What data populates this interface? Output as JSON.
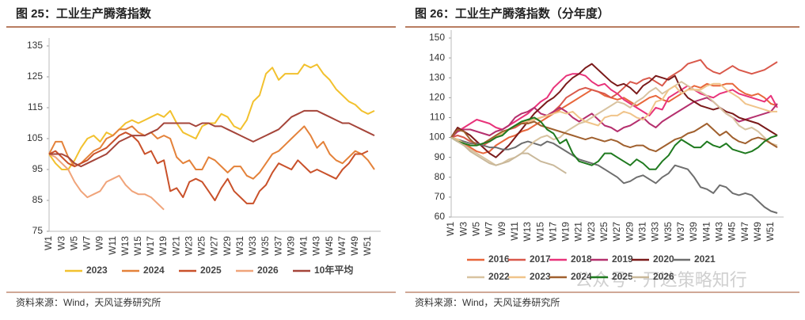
{
  "chart_data": [
    {
      "type": "line",
      "title": "图 25：工业生产腾落指数",
      "source": "资料来源：Wind，天风证券研究所",
      "categories": [
        "W1",
        null,
        "W3",
        null,
        "W5",
        null,
        "W7",
        null,
        "W9",
        null,
        "W11",
        null,
        "W13",
        null,
        "W15",
        null,
        "W17",
        null,
        "W19",
        null,
        "W21",
        null,
        "W23",
        null,
        "W25",
        null,
        "W27",
        null,
        "W29",
        null,
        "W31",
        null,
        "W33",
        null,
        "W35",
        null,
        "W37",
        null,
        "W39",
        null,
        "W41",
        null,
        "W43",
        null,
        "W45",
        null,
        "W47",
        null,
        "W49",
        null,
        "W51",
        null
      ],
      "ylim": [
        75,
        135
      ],
      "yticks": [
        75,
        85,
        95,
        105,
        115,
        125,
        135
      ],
      "series": [
        {
          "name": "2023",
          "color": "#f2c12e",
          "values": [
            100,
            97,
            95,
            95,
            98,
            102,
            105,
            106,
            104,
            107,
            106,
            108,
            110,
            111,
            110,
            111,
            112,
            113,
            112,
            114,
            110,
            107,
            106,
            105,
            109,
            110,
            110,
            113,
            112,
            109,
            108,
            111,
            117,
            119,
            126,
            128,
            124,
            126,
            126,
            126,
            129,
            128,
            129,
            126,
            124,
            121,
            119,
            117,
            116,
            114,
            113,
            114
          ]
        },
        {
          "name": "2024",
          "color": "#e4823a",
          "values": [
            100,
            104,
            104,
            99,
            96,
            97,
            99,
            101,
            102,
            105,
            106,
            108,
            108,
            109,
            107,
            106,
            107,
            105,
            106,
            105,
            99,
            97,
            98,
            95,
            95,
            99,
            98,
            96,
            94,
            96,
            96,
            93,
            92,
            94,
            97,
            100,
            101,
            103,
            105,
            107,
            109,
            106,
            102,
            104,
            100,
            98,
            97,
            99,
            101,
            100,
            98,
            95
          ]
        },
        {
          "name": "2025",
          "color": "#c9512a",
          "values": [
            100,
            101,
            99,
            97,
            96,
            97,
            98,
            100,
            101,
            102,
            104,
            106,
            107,
            106,
            104,
            100,
            101,
            97,
            98,
            88,
            89,
            86,
            91,
            92,
            91,
            88,
            85,
            89,
            92,
            88,
            86,
            84,
            84,
            88,
            90,
            94,
            97,
            96,
            95,
            98,
            96,
            94,
            95,
            94,
            93,
            92,
            95,
            97,
            100,
            100,
            101,
            null
          ]
        },
        {
          "name": "2026",
          "color": "#f0a47a",
          "values": [
            100,
            99,
            97,
            95,
            91,
            88,
            86,
            87,
            88,
            91,
            92,
            93,
            90,
            88,
            87,
            87,
            86,
            84,
            82,
            null,
            null,
            null,
            null,
            null,
            null,
            null,
            null,
            null,
            null,
            null,
            null,
            null,
            null,
            null,
            null,
            null,
            null,
            null,
            null,
            null,
            null,
            null,
            null,
            null,
            null,
            null,
            null,
            null,
            null,
            null,
            null,
            null
          ]
        },
        {
          "name": "10年平均",
          "color": "#a5453a",
          "values": [
            100,
            100,
            100,
            99,
            97,
            96,
            97,
            98,
            99,
            100,
            102,
            104,
            105,
            106,
            106,
            106,
            107,
            108,
            110,
            110,
            110,
            110,
            110,
            109,
            110,
            110,
            109,
            109,
            108,
            107,
            106,
            105,
            104,
            105,
            106,
            107,
            108,
            110,
            112,
            113,
            114,
            114,
            114,
            113,
            112,
            111,
            110,
            110,
            109,
            108,
            107,
            106
          ]
        }
      ]
    },
    {
      "type": "line",
      "title": "图 26：工业生产腾落指数（分年度）",
      "source": "资料来源：Wind，天风证券研究所",
      "categories": [
        "W1",
        null,
        "W3",
        null,
        "W5",
        null,
        "W7",
        null,
        "W9",
        null,
        "W11",
        null,
        "W13",
        null,
        "W15",
        null,
        "W17",
        null,
        "W19",
        null,
        "W21",
        null,
        "W23",
        null,
        "W25",
        null,
        "W27",
        null,
        "W29",
        null,
        "W31",
        null,
        "W33",
        null,
        "W35",
        null,
        "W37",
        null,
        "W39",
        null,
        "W41",
        null,
        "W43",
        null,
        "W45",
        null,
        "W47",
        null,
        "W49",
        null,
        "W51",
        null
      ],
      "ylim": [
        60,
        150
      ],
      "yticks": [
        60,
        70,
        80,
        90,
        100,
        110,
        120,
        130,
        140,
        150
      ],
      "series": [
        {
          "name": "2016",
          "color": "#e8663a",
          "values": [
            100,
            99,
            97,
            95,
            93,
            92,
            93,
            96,
            98,
            100,
            101,
            103,
            104,
            106,
            108,
            110,
            112,
            114,
            116,
            118,
            120,
            122,
            124,
            123,
            121,
            120,
            119,
            120,
            118,
            116,
            118,
            120,
            121,
            119,
            118,
            120,
            122,
            124,
            126,
            125,
            127,
            126,
            126,
            127,
            127,
            124,
            122,
            121,
            122,
            120,
            117,
            116
          ]
        },
        {
          "name": "2017",
          "color": "#d9584a",
          "values": [
            100,
            101,
            100,
            98,
            97,
            96,
            98,
            100,
            102,
            104,
            105,
            107,
            108,
            109,
            110,
            111,
            113,
            116,
            120,
            122,
            124,
            125,
            124,
            123,
            122,
            120,
            122,
            125,
            128,
            127,
            129,
            130,
            128,
            126,
            130,
            132,
            134,
            137,
            138,
            139,
            135,
            133,
            132,
            134,
            136,
            134,
            133,
            132,
            133,
            134,
            136,
            138
          ]
        },
        {
          "name": "2018",
          "color": "#e8337a",
          "values": [
            100,
            103,
            105,
            107,
            109,
            108,
            107,
            105,
            104,
            106,
            108,
            110,
            112,
            115,
            118,
            120,
            125,
            128,
            131,
            132,
            132,
            131,
            128,
            126,
            127,
            124,
            122,
            119,
            117,
            115,
            113,
            111,
            115,
            114,
            120,
            122,
            124,
            126,
            124,
            122,
            121,
            120,
            122,
            123,
            124,
            122,
            121,
            120,
            119,
            118,
            121,
            115
          ]
        },
        {
          "name": "2019",
          "color": "#b5306e",
          "values": [
            100,
            103,
            104,
            104,
            103,
            102,
            101,
            103,
            104,
            106,
            110,
            112,
            113,
            115,
            112,
            111,
            113,
            115,
            113,
            110,
            108,
            110,
            112,
            109,
            106,
            105,
            103,
            105,
            106,
            108,
            110,
            107,
            105,
            108,
            110,
            112,
            114,
            116,
            118,
            119,
            120,
            118,
            115,
            112,
            110,
            108,
            109,
            110,
            111,
            112,
            113,
            117
          ]
        },
        {
          "name": "2020",
          "color": "#7a1a1a",
          "values": [
            100,
            105,
            103,
            101,
            98,
            95,
            92,
            90,
            93,
            96,
            100,
            104,
            108,
            112,
            115,
            118,
            120,
            123,
            127,
            130,
            132,
            135,
            137,
            134,
            131,
            128,
            126,
            127,
            125,
            122,
            126,
            128,
            131,
            130,
            129,
            131,
            124,
            120,
            118,
            116,
            115,
            114,
            115,
            113,
            112,
            110,
            109,
            108,
            107,
            105,
            103,
            101
          ]
        },
        {
          "name": "2021",
          "color": "#6e6e6e",
          "values": [
            100,
            99,
            98,
            97,
            97,
            96,
            95,
            95,
            94,
            94,
            95,
            97,
            98,
            97,
            96,
            98,
            97,
            95,
            93,
            91,
            89,
            88,
            87,
            86,
            84,
            82,
            80,
            77,
            78,
            80,
            81,
            79,
            77,
            80,
            82,
            86,
            85,
            84,
            80,
            75,
            74,
            72,
            76,
            75,
            72,
            71,
            72,
            71,
            68,
            65,
            63,
            62
          ]
        },
        {
          "name": "2022",
          "color": "#d8c3a0",
          "values": [
            100,
            98,
            96,
            94,
            92,
            90,
            88,
            86,
            87,
            89,
            90,
            92,
            95,
            98,
            100,
            101,
            99,
            100,
            103,
            105,
            107,
            108,
            110,
            112,
            114,
            116,
            118,
            117,
            115,
            118,
            120,
            123,
            125,
            122,
            124,
            126,
            128,
            126,
            124,
            123,
            121,
            118,
            115,
            112,
            110,
            106,
            104,
            105,
            103,
            100,
            97,
            96
          ]
        },
        {
          "name": "2023",
          "color": "#f0c48a",
          "values": [
            100,
            99,
            97,
            96,
            96,
            97,
            98,
            100,
            102,
            104,
            106,
            108,
            108,
            109,
            110,
            111,
            112,
            113,
            112,
            113,
            110,
            108,
            107,
            106,
            110,
            111,
            111,
            113,
            112,
            110,
            109,
            112,
            118,
            119,
            124,
            126,
            122,
            124,
            124,
            124,
            126,
            127,
            127,
            124,
            122,
            120,
            117,
            116,
            115,
            114,
            113,
            113
          ]
        },
        {
          "name": "2024",
          "color": "#a0602e",
          "values": [
            100,
            104,
            103,
            99,
            96,
            97,
            99,
            101,
            103,
            104,
            106,
            107,
            107,
            108,
            106,
            105,
            104,
            103,
            102,
            101,
            100,
            99,
            100,
            99,
            98,
            99,
            98,
            96,
            95,
            96,
            96,
            94,
            93,
            95,
            97,
            99,
            100,
            102,
            103,
            105,
            107,
            104,
            101,
            103,
            100,
            98,
            97,
            99,
            100,
            99,
            97,
            95
          ]
        },
        {
          "name": "2025",
          "color": "#1f7a1f",
          "values": [
            100,
            98,
            97,
            96,
            96,
            97,
            98,
            100,
            101,
            104,
            106,
            108,
            109,
            110,
            108,
            104,
            102,
            97,
            99,
            92,
            88,
            87,
            86,
            88,
            92,
            92,
            90,
            88,
            86,
            89,
            87,
            84,
            84,
            88,
            91,
            96,
            99,
            97,
            95,
            95,
            98,
            96,
            95,
            97,
            94,
            93,
            92,
            93,
            95,
            98,
            100,
            101
          ]
        },
        {
          "name": "2026",
          "color": "#c9b89a",
          "values": [
            100,
            98,
            96,
            93,
            91,
            89,
            87,
            86,
            87,
            88,
            90,
            92,
            92,
            90,
            88,
            87,
            86,
            84,
            82,
            null,
            null,
            null,
            null,
            null,
            null,
            null,
            null,
            null,
            null,
            null,
            null,
            null,
            null,
            null,
            null,
            null,
            null,
            null,
            null,
            null,
            null,
            null,
            null,
            null,
            null,
            null,
            null,
            null,
            null,
            null,
            null,
            null
          ]
        }
      ]
    }
  ],
  "watermark": "公众号 · 开达策略知行"
}
